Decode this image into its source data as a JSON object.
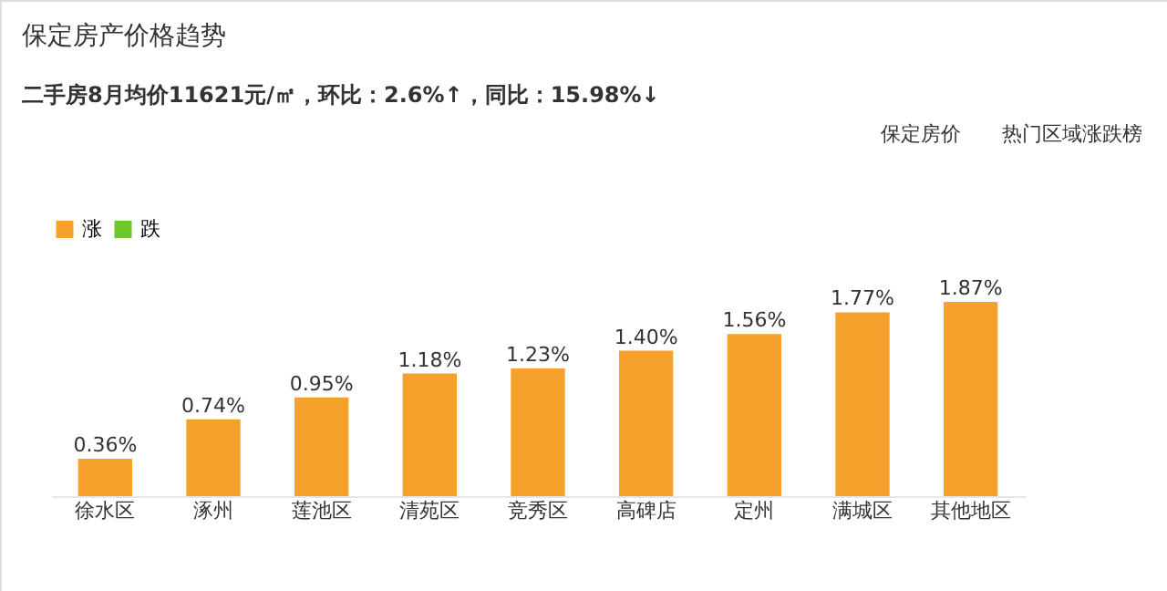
{
  "chart_data": {
    "type": "bar",
    "title": "保定房产价格趋势",
    "subtitle": "二手房8月均价11621元/㎡，环比：2.6%↑，同比：15.98%↓",
    "annotations": [
      "保定房价",
      "热门区域涨跌榜"
    ],
    "categories": [
      "徐水区",
      "涿州",
      "莲池区",
      "清苑区",
      "竞秀区",
      "高碑店",
      "定州",
      "满城区",
      "其他地区"
    ],
    "series": [
      {
        "name": "涨",
        "color": "#f5a12c",
        "values": [
          0.36,
          0.74,
          0.95,
          1.18,
          1.23,
          1.4,
          1.56,
          1.77,
          1.87
        ],
        "value_labels": [
          "0.36%",
          "0.74%",
          "0.95%",
          "1.18%",
          "1.23%",
          "1.40%",
          "1.56%",
          "1.77%",
          "1.87%"
        ]
      },
      {
        "name": "跌",
        "color": "#6cc72b",
        "values": [
          null,
          null,
          null,
          null,
          null,
          null,
          null,
          null,
          null
        ]
      }
    ],
    "legend": "top left"
  }
}
